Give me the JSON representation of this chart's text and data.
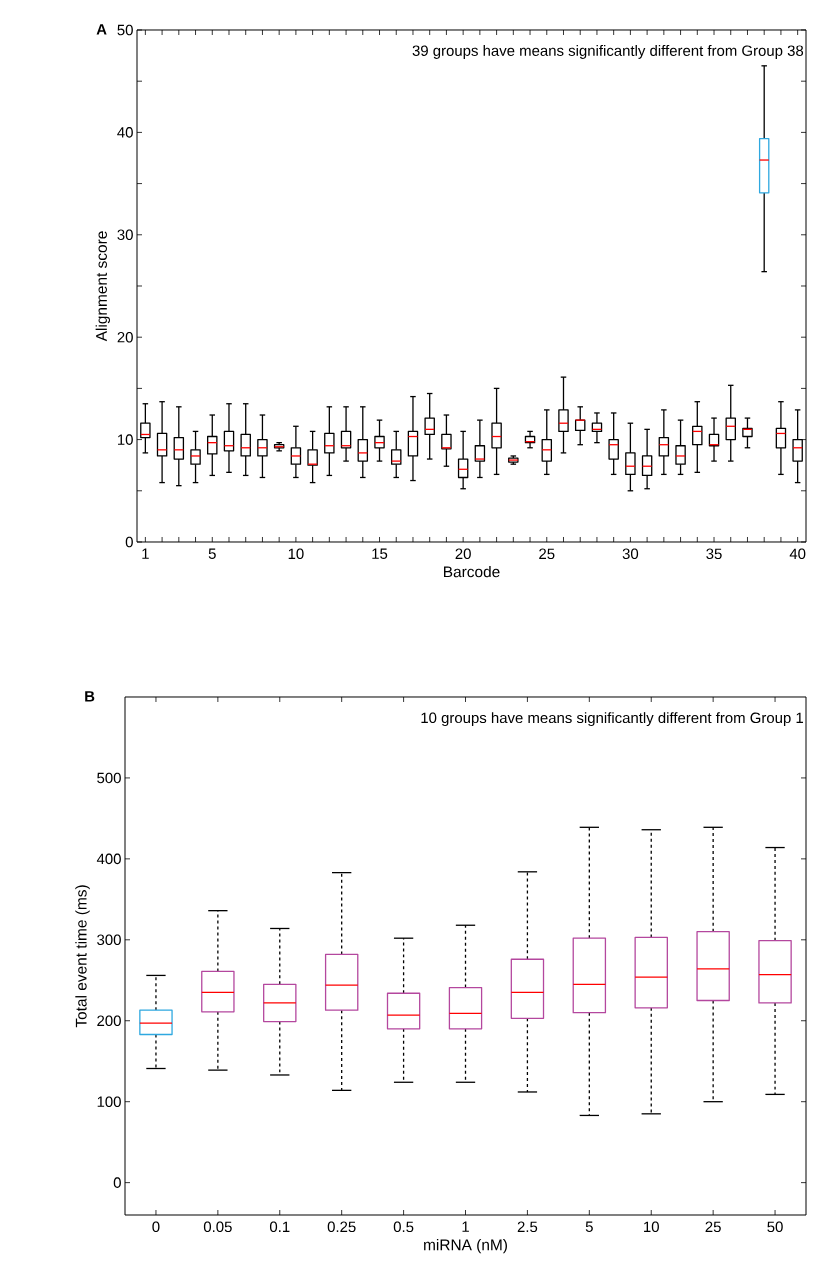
{
  "chart_data": [
    {
      "type": "box",
      "title": "A",
      "xlabel": "Barcode",
      "ylabel": "Alignment score",
      "annotations": [
        "39 groups have means significantly different from Group 38"
      ],
      "x": [
        1,
        2,
        3,
        4,
        5,
        6,
        7,
        8,
        9,
        10,
        11,
        12,
        13,
        14,
        15,
        16,
        17,
        18,
        19,
        20,
        21,
        22,
        23,
        24,
        25,
        26,
        27,
        28,
        29,
        30,
        31,
        32,
        33,
        34,
        35,
        36,
        37,
        38,
        39,
        40
      ],
      "xlim": [
        0.5,
        40.5
      ],
      "ylim": [
        0,
        50
      ],
      "xticks": [
        1,
        {
          "value": 2,
          "label": null
        },
        {
          "value": 3,
          "label": null
        },
        {
          "value": 4,
          "label": null
        },
        5,
        {
          "value": 6,
          "label": null
        },
        {
          "value": 7,
          "label": null
        },
        {
          "value": 8,
          "label": null
        },
        {
          "value": 9,
          "label": null
        },
        10,
        {
          "value": 11,
          "label": null
        },
        {
          "value": 12,
          "label": null
        },
        {
          "value": 13,
          "label": null
        },
        {
          "value": 14,
          "label": null
        },
        15,
        {
          "value": 16,
          "label": null
        },
        {
          "value": 17,
          "label": null
        },
        {
          "value": 18,
          "label": null
        },
        {
          "value": 19,
          "label": null
        },
        20,
        {
          "value": 21,
          "label": null
        },
        {
          "value": 22,
          "label": null
        },
        {
          "value": 23,
          "label": null
        },
        {
          "value": 24,
          "label": null
        },
        25,
        {
          "value": 26,
          "label": null
        },
        {
          "value": 27,
          "label": null
        },
        {
          "value": 28,
          "label": null
        },
        {
          "value": 29,
          "label": null
        },
        30,
        {
          "value": 31,
          "label": null
        },
        {
          "value": 32,
          "label": null
        },
        {
          "value": 33,
          "label": null
        },
        {
          "value": 34,
          "label": null
        },
        35,
        {
          "value": 36,
          "label": null
        },
        {
          "value": 37,
          "label": null
        },
        {
          "value": 38,
          "label": null
        },
        {
          "value": 39,
          "label": null
        },
        40
      ],
      "yticks": [
        0,
        {
          "value": 5,
          "label": null
        },
        10,
        {
          "value": 15,
          "label": null
        },
        20,
        {
          "value": 25,
          "label": null
        },
        30,
        {
          "value": 35,
          "label": null
        },
        40,
        {
          "value": 45,
          "label": null
        },
        50
      ],
      "colors": [
        "#000000",
        "#000000",
        "#000000",
        "#000000",
        "#000000",
        "#000000",
        "#000000",
        "#000000",
        "#000000",
        "#000000",
        "#000000",
        "#000000",
        "#000000",
        "#000000",
        "#000000",
        "#000000",
        "#000000",
        "#000000",
        "#000000",
        "#000000",
        "#000000",
        "#000000",
        "#000000",
        "#000000",
        "#000000",
        "#000000",
        "#000000",
        "#000000",
        "#000000",
        "#000000",
        "#000000",
        "#000000",
        "#000000",
        "#000000",
        "#000000",
        "#000000",
        "#000000",
        "#2ea8e0",
        "#000000",
        "#000000"
      ],
      "boxes": [
        {
          "low": 8.7,
          "q1": 10.2,
          "median": 10.5,
          "q3": 11.6,
          "high": 13.5
        },
        {
          "low": 5.8,
          "q1": 8.4,
          "median": 9.0,
          "q3": 10.6,
          "high": 13.7
        },
        {
          "low": 5.5,
          "q1": 8.1,
          "median": 9.0,
          "q3": 10.2,
          "high": 13.2
        },
        {
          "low": 5.8,
          "q1": 7.6,
          "median": 8.4,
          "q3": 9.0,
          "high": 10.8
        },
        {
          "low": 6.5,
          "q1": 8.6,
          "median": 9.7,
          "q3": 10.3,
          "high": 12.4
        },
        {
          "low": 6.8,
          "q1": 8.9,
          "median": 9.4,
          "q3": 10.8,
          "high": 13.5
        },
        {
          "low": 6.5,
          "q1": 8.4,
          "median": 9.2,
          "q3": 10.5,
          "high": 13.5
        },
        {
          "low": 6.3,
          "q1": 8.4,
          "median": 9.2,
          "q3": 10.0,
          "high": 12.4
        },
        {
          "low": 8.9,
          "q1": 9.2,
          "median": 9.3,
          "q3": 9.5,
          "high": 9.7
        },
        {
          "low": 6.3,
          "q1": 7.6,
          "median": 8.4,
          "q3": 9.2,
          "high": 11.3
        },
        {
          "low": 5.8,
          "q1": 7.5,
          "median": 7.6,
          "q3": 9.0,
          "high": 10.8
        },
        {
          "low": 6.5,
          "q1": 8.7,
          "median": 9.4,
          "q3": 10.6,
          "high": 13.2
        },
        {
          "low": 7.9,
          "q1": 9.2,
          "median": 9.4,
          "q3": 10.8,
          "high": 13.2
        },
        {
          "low": 6.3,
          "q1": 7.9,
          "median": 8.7,
          "q3": 10.0,
          "high": 13.2
        },
        {
          "low": 7.9,
          "q1": 9.2,
          "median": 9.7,
          "q3": 10.3,
          "high": 11.9
        },
        {
          "low": 6.3,
          "q1": 7.6,
          "median": 7.9,
          "q3": 9.0,
          "high": 10.8
        },
        {
          "low": 6.0,
          "q1": 8.4,
          "median": 10.3,
          "q3": 10.8,
          "high": 14.2
        },
        {
          "low": 8.1,
          "q1": 10.5,
          "median": 11.0,
          "q3": 12.1,
          "high": 14.5
        },
        {
          "low": 7.4,
          "q1": 9.1,
          "median": 9.2,
          "q3": 10.5,
          "high": 12.4
        },
        {
          "low": 5.2,
          "q1": 6.3,
          "median": 7.1,
          "q3": 8.1,
          "high": 10.8
        },
        {
          "low": 6.3,
          "q1": 7.9,
          "median": 8.1,
          "q3": 9.4,
          "high": 11.9
        },
        {
          "low": 6.6,
          "q1": 9.2,
          "median": 10.3,
          "q3": 11.6,
          "high": 15.0
        },
        {
          "low": 7.6,
          "q1": 7.8,
          "median": 8.0,
          "q3": 8.2,
          "high": 8.4
        },
        {
          "low": 9.2,
          "q1": 9.7,
          "median": 9.8,
          "q3": 10.3,
          "high": 10.8
        },
        {
          "low": 6.6,
          "q1": 7.9,
          "median": 9.0,
          "q3": 10.0,
          "high": 12.9
        },
        {
          "low": 8.7,
          "q1": 10.8,
          "median": 11.6,
          "q3": 12.9,
          "high": 16.1
        },
        {
          "low": 9.5,
          "q1": 10.9,
          "median": 11.9,
          "q3": 11.9,
          "high": 13.2
        },
        {
          "low": 9.7,
          "q1": 10.8,
          "median": 11.0,
          "q3": 11.6,
          "high": 12.6
        },
        {
          "low": 6.6,
          "q1": 8.1,
          "median": 9.5,
          "q3": 10.0,
          "high": 12.6
        },
        {
          "low": 5.0,
          "q1": 6.6,
          "median": 7.4,
          "q3": 8.7,
          "high": 11.6
        },
        {
          "low": 5.2,
          "q1": 6.5,
          "median": 7.4,
          "q3": 8.4,
          "high": 11.0
        },
        {
          "low": 6.6,
          "q1": 8.4,
          "median": 9.5,
          "q3": 10.2,
          "high": 12.9
        },
        {
          "low": 6.6,
          "q1": 7.6,
          "median": 8.4,
          "q3": 9.4,
          "high": 11.9
        },
        {
          "low": 6.8,
          "q1": 9.5,
          "median": 10.8,
          "q3": 11.3,
          "high": 13.7
        },
        {
          "low": 7.9,
          "q1": 9.4,
          "median": 9.5,
          "q3": 10.5,
          "high": 12.1
        },
        {
          "low": 7.9,
          "q1": 10.0,
          "median": 11.3,
          "q3": 12.1,
          "high": 15.3
        },
        {
          "low": 9.2,
          "q1": 10.3,
          "median": 11.0,
          "q3": 11.1,
          "high": 12.1
        },
        {
          "low": 26.4,
          "q1": 34.1,
          "median": 37.3,
          "q3": 39.4,
          "high": 46.5
        },
        {
          "low": 6.6,
          "q1": 9.2,
          "median": 10.6,
          "q3": 11.1,
          "high": 13.7
        },
        {
          "low": 5.8,
          "q1": 7.9,
          "median": 9.2,
          "q3": 10.0,
          "high": 12.9
        }
      ]
    },
    {
      "type": "box",
      "title": "B",
      "xlabel": "miRNA (nM)",
      "ylabel": "Total event time (ms)",
      "annotations": [
        "10 groups have means significantly different from Group 1"
      ],
      "categories": [
        "0",
        "0.05",
        "0.1",
        "0.25",
        "0.5",
        "1",
        "2.5",
        "5",
        "10",
        "25",
        "50"
      ],
      "ylim": [
        -40,
        600
      ],
      "yticks": [
        0,
        100,
        200,
        300,
        400,
        500
      ],
      "line_style": "dashed",
      "colors": [
        "#2ea8e0",
        "#b4479e",
        "#b4479e",
        "#b4479e",
        "#b4479e",
        "#b4479e",
        "#b4479e",
        "#b4479e",
        "#b4479e",
        "#b4479e",
        "#b4479e"
      ],
      "boxes": [
        {
          "low": 141,
          "q1": 183,
          "median": 197,
          "q3": 213,
          "high": 256
        },
        {
          "low": 139,
          "q1": 211,
          "median": 235,
          "q3": 261,
          "high": 336
        },
        {
          "low": 133,
          "q1": 199,
          "median": 222,
          "q3": 245,
          "high": 314
        },
        {
          "low": 114,
          "q1": 213,
          "median": 244,
          "q3": 282,
          "high": 383
        },
        {
          "low": 124,
          "q1": 190,
          "median": 207,
          "q3": 234,
          "high": 302
        },
        {
          "low": 124,
          "q1": 190,
          "median": 209,
          "q3": 241,
          "high": 318
        },
        {
          "low": 112,
          "q1": 203,
          "median": 235,
          "q3": 276,
          "high": 384
        },
        {
          "low": 83,
          "q1": 210,
          "median": 245,
          "q3": 302,
          "high": 439
        },
        {
          "low": 85,
          "q1": 216,
          "median": 254,
          "q3": 303,
          "high": 436
        },
        {
          "low": 100,
          "q1": 225,
          "median": 264,
          "q3": 310,
          "high": 439
        },
        {
          "low": 109,
          "q1": 222,
          "median": 257,
          "q3": 299,
          "high": 414
        }
      ]
    }
  ]
}
